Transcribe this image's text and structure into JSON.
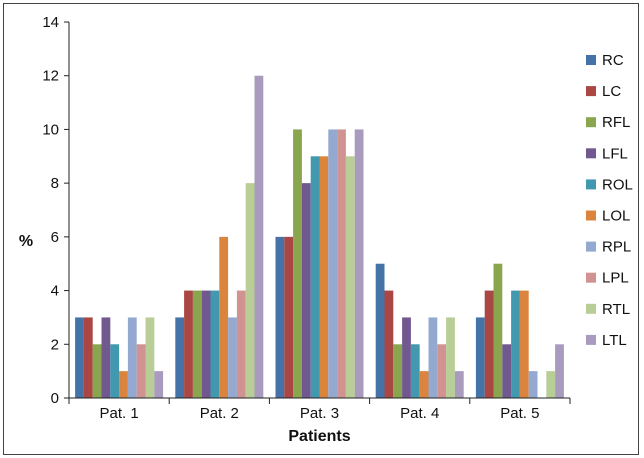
{
  "chart_data": {
    "type": "bar",
    "title": "",
    "xlabel": "Patients",
    "ylabel": "%",
    "ylim": [
      0,
      14
    ],
    "yticks": [
      0,
      2,
      4,
      6,
      8,
      10,
      12,
      14
    ],
    "grid": false,
    "legend_position": "right",
    "categories": [
      "Pat. 1",
      "Pat. 2",
      "Pat. 3",
      "Pat. 4",
      "Pat. 5"
    ],
    "series": [
      {
        "name": "RC",
        "color": "#4572a7",
        "values": [
          3,
          3,
          6,
          5,
          3
        ]
      },
      {
        "name": "LC",
        "color": "#aa4643",
        "values": [
          3,
          4,
          6,
          4,
          4
        ]
      },
      {
        "name": "RFL",
        "color": "#89a54e",
        "values": [
          2,
          4,
          10,
          2,
          5
        ]
      },
      {
        "name": "LFL",
        "color": "#71588f",
        "values": [
          3,
          4,
          8,
          3,
          2
        ]
      },
      {
        "name": "ROL",
        "color": "#4198af",
        "values": [
          2,
          4,
          9,
          2,
          4
        ]
      },
      {
        "name": "LOL",
        "color": "#db843d",
        "values": [
          1,
          6,
          9,
          1,
          4
        ]
      },
      {
        "name": "RPL",
        "color": "#93a9cf",
        "values": [
          3,
          3,
          10,
          3,
          1
        ]
      },
      {
        "name": "LPL",
        "color": "#d19392",
        "values": [
          2,
          4,
          10,
          2,
          0
        ]
      },
      {
        "name": "RTL",
        "color": "#b9cd96",
        "values": [
          3,
          8,
          9,
          3,
          1
        ]
      },
      {
        "name": "LTL",
        "color": "#a99bbd",
        "values": [
          1,
          12,
          10,
          1,
          2
        ]
      }
    ]
  }
}
